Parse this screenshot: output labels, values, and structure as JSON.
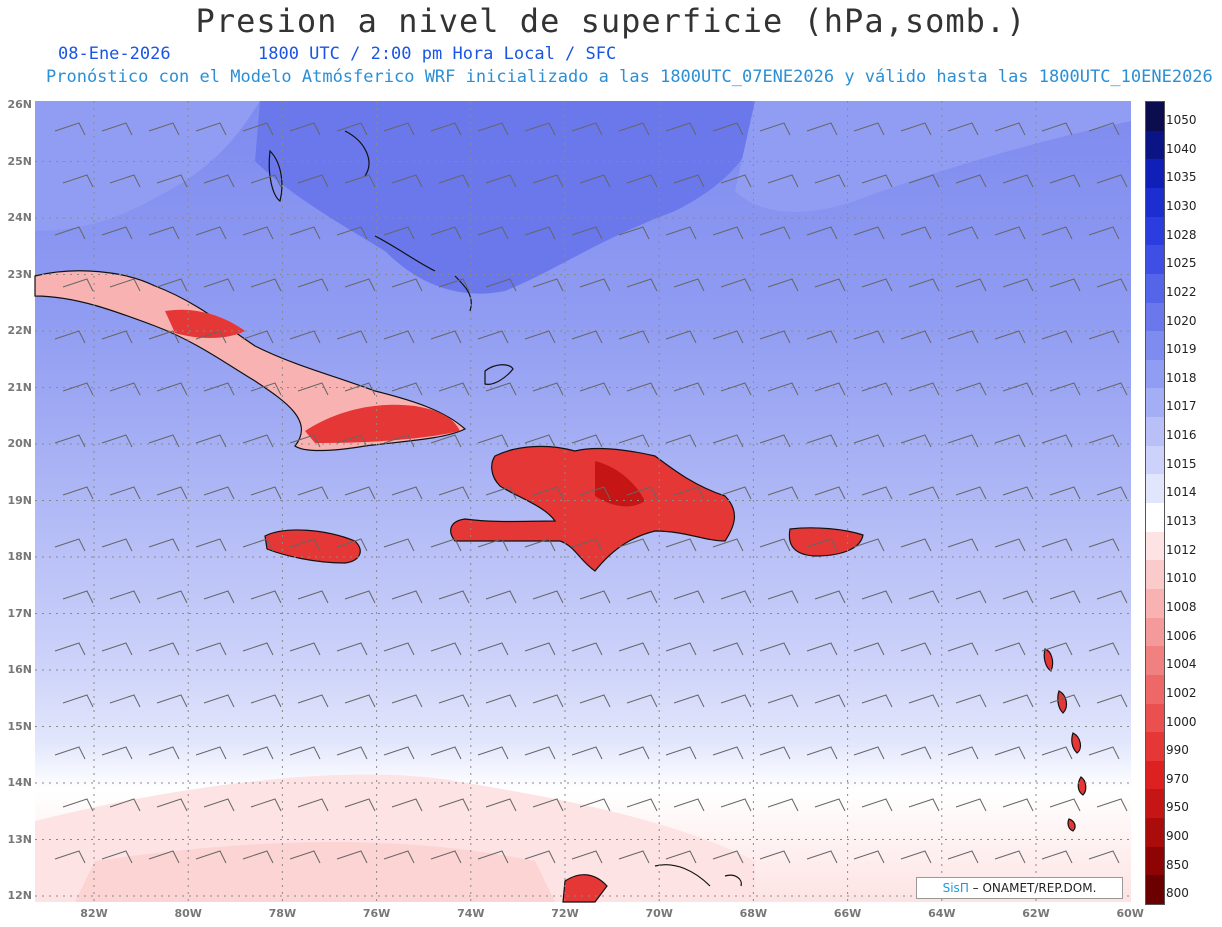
{
  "header": {
    "title": "Presion a nivel de superficie (hPa,somb.)",
    "date": "08-Ene-2026",
    "time": "1800 UTC / 2:00 pm Hora Local / SFC",
    "forecast": "Pronóstico con el Modelo Atmósferico WRF inicializado a las 1800UTC_07ENE2026 y válido hasta las  1800UTC_10ENE2026"
  },
  "axes": {
    "lat_labels": [
      "26N",
      "25N",
      "24N",
      "23N",
      "22N",
      "21N",
      "20N",
      "19N",
      "18N",
      "17N",
      "16N",
      "15N",
      "14N",
      "13N",
      "12N"
    ],
    "lon_labels": [
      "82W",
      "80W",
      "78W",
      "76W",
      "74W",
      "72W",
      "70W",
      "68W",
      "66W",
      "64W",
      "62W",
      "60W"
    ]
  },
  "colorbar": {
    "levels": [
      "1050",
      "1040",
      "1035",
      "1030",
      "1028",
      "1025",
      "1022",
      "1020",
      "1019",
      "1018",
      "1017",
      "1016",
      "1015",
      "1014",
      "1013",
      "1012",
      "1010",
      "1008",
      "1006",
      "1004",
      "1002",
      "1000",
      "990",
      "970",
      "950",
      "900",
      "850",
      "800"
    ],
    "colors": [
      "#0b0d4f",
      "#0a1485",
      "#0f1fb8",
      "#1d2ed0",
      "#2c3de0",
      "#3f4fe6",
      "#5565ea",
      "#6a78ec",
      "#7e8bef",
      "#919df2",
      "#a4aef4",
      "#b8c0f7",
      "#ccd2f9",
      "#e2e6fc",
      "#ffffff",
      "#fde3e3",
      "#fbcaca",
      "#f8b2b2",
      "#f59a9a",
      "#f18181",
      "#ee6868",
      "#ea5050",
      "#e63737",
      "#dd2020",
      "#c61515",
      "#aa0b0b",
      "#8e0404",
      "#6a0000"
    ]
  },
  "credit": {
    "brand": "SisΠ",
    "text": "– ONAMET/REP.DOM."
  }
}
